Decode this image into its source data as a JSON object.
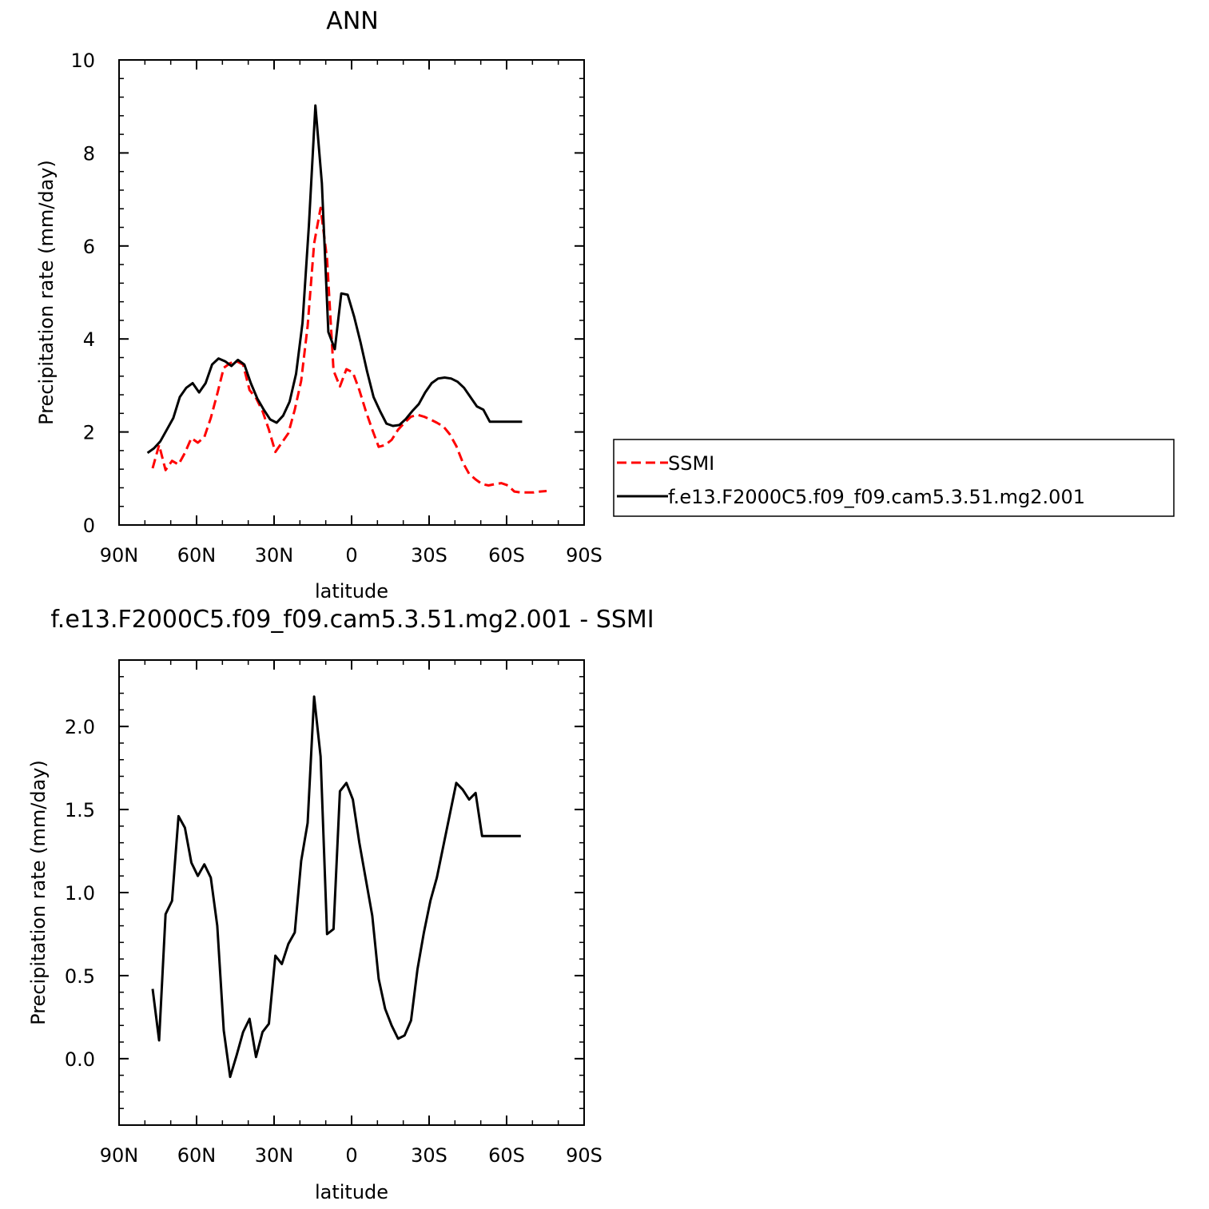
{
  "chart_data": [
    {
      "type": "line",
      "title": "ANN",
      "xlabel": "latitude",
      "ylabel": "Precipitation rate (mm/day)",
      "xlim": [
        90,
        -90
      ],
      "ylim": [
        0,
        10
      ],
      "x_ticks": [
        90,
        60,
        30,
        0,
        -30,
        -60,
        -90
      ],
      "x_tick_labels": [
        "90N",
        "60N",
        "30N",
        "0",
        "30S",
        "60S",
        "90S"
      ],
      "y_ticks": [
        0,
        2,
        4,
        6,
        8,
        10
      ],
      "y_tick_labels": [
        "0",
        "2",
        "4",
        "6",
        "8",
        "10"
      ],
      "grid": false,
      "legend": {
        "placement": "right",
        "entries": [
          "SSMI",
          "f.e13.F2000C5.f09_f09.cam5.3.51.mg2.001"
        ]
      },
      "series": [
        {
          "name": "SSMI",
          "color": "#ff0000",
          "dash": "dashed",
          "x": [
            77,
            74.5,
            72,
            69.5,
            67,
            64.5,
            62,
            59.5,
            57,
            54.5,
            52,
            49.5,
            47,
            44.5,
            42,
            39.5,
            37,
            34.5,
            32,
            29.5,
            27,
            24.5,
            22,
            19.5,
            17,
            14.5,
            12,
            9.5,
            7,
            4.5,
            2,
            -0.5,
            -3,
            -5.5,
            -8,
            -10.5,
            -13,
            -15.5,
            -18,
            -20.5,
            -23,
            -25.5,
            -28,
            -30.5,
            -33,
            -35.5,
            -38,
            -40.5,
            -43,
            -45.5,
            -48,
            -50.5,
            -53,
            -55.5,
            -58,
            -60.5,
            -63,
            -65.5,
            -68,
            -70.5,
            -73,
            -75.5
          ],
          "values": [
            1.22,
            1.72,
            1.18,
            1.38,
            1.3,
            1.55,
            1.87,
            1.77,
            1.89,
            2.3,
            2.82,
            3.38,
            3.48,
            3.52,
            3.45,
            2.9,
            2.73,
            2.45,
            2.05,
            1.57,
            1.77,
            1.97,
            2.48,
            3.1,
            4.28,
            6.05,
            6.82,
            5.72,
            3.32,
            2.98,
            3.35,
            3.28,
            2.9,
            2.45,
            2.05,
            1.68,
            1.72,
            1.83,
            2.05,
            2.2,
            2.33,
            2.37,
            2.33,
            2.27,
            2.2,
            2.12,
            1.95,
            1.7,
            1.35,
            1.1,
            0.98,
            0.88,
            0.85,
            0.88,
            0.9,
            0.85,
            0.72,
            0.7,
            0.7,
            0.7,
            0.72,
            0.73
          ]
        },
        {
          "name": "f.e13.F2000C5.f09_f09.cam5.3.51.mg2.001",
          "color": "#000000",
          "dash": "solid",
          "x": [
            79,
            76.5,
            74,
            71.5,
            69,
            66.5,
            64,
            61.5,
            59,
            56.5,
            54,
            51.5,
            49,
            46.5,
            44,
            41.5,
            39,
            36.5,
            34,
            31.5,
            29,
            26.5,
            24,
            21.5,
            19,
            16.5,
            14,
            11.5,
            9,
            6.5,
            4,
            1.5,
            -1,
            -3.5,
            -6,
            -8.5,
            -11,
            -13.5,
            -16,
            -18.5,
            -21,
            -23.5,
            -26,
            -28.5,
            -31,
            -33.5,
            -36,
            -38.5,
            -41,
            -43.5,
            -46,
            -48.5,
            -51,
            -53.5,
            -56,
            -58.5,
            -61,
            -63.5,
            -66
          ],
          "values": [
            1.55,
            1.65,
            1.8,
            2.05,
            2.3,
            2.75,
            2.95,
            3.05,
            2.85,
            3.05,
            3.45,
            3.58,
            3.52,
            3.42,
            3.55,
            3.45,
            3.05,
            2.72,
            2.48,
            2.27,
            2.2,
            2.35,
            2.65,
            3.25,
            4.35,
            6.45,
            9.02,
            7.35,
            4.15,
            3.78,
            4.98,
            4.95,
            4.48,
            3.92,
            3.3,
            2.75,
            2.45,
            2.18,
            2.13,
            2.15,
            2.28,
            2.45,
            2.6,
            2.85,
            3.05,
            3.15,
            3.17,
            3.15,
            3.08,
            2.95,
            2.75,
            2.55,
            2.48,
            2.22,
            2.22,
            2.22,
            2.22,
            2.22,
            2.22
          ]
        }
      ]
    },
    {
      "type": "line",
      "title": "f.e13.F2000C5.f09_f09.cam5.3.51.mg2.001  -  SSMI",
      "xlabel": "latitude",
      "ylabel": "Precipitation rate (mm/day)",
      "xlim": [
        90,
        -90
      ],
      "ylim": [
        -0.4,
        2.4
      ],
      "x_ticks": [
        90,
        60,
        30,
        0,
        -30,
        -60,
        -90
      ],
      "x_tick_labels": [
        "90N",
        "60N",
        "30N",
        "0",
        "30S",
        "60S",
        "90S"
      ],
      "y_ticks": [
        0.0,
        0.5,
        1.0,
        1.5,
        2.0
      ],
      "y_tick_labels": [
        "0.0",
        "0.5",
        "1.0",
        "1.5",
        "2.0"
      ],
      "grid": false,
      "series": [
        {
          "color": "#000000",
          "dash": "solid",
          "x": [
            77,
            74.5,
            72,
            69.5,
            67,
            64.5,
            62,
            59.5,
            57,
            54.5,
            52,
            49.5,
            47,
            44.5,
            42,
            39.5,
            37,
            34.5,
            32,
            29.5,
            27,
            24.5,
            22,
            19.5,
            17,
            14.5,
            12,
            9.5,
            7,
            4.5,
            2,
            -0.5,
            -3,
            -5.5,
            -8,
            -10.5,
            -13,
            -15.5,
            -18,
            -20.5,
            -23,
            -25.5,
            -28,
            -30.5,
            -33,
            -35.5,
            -38,
            -40.5,
            -43,
            -45.5,
            -48,
            -50.5,
            -53,
            -55.5,
            -58,
            -60.5,
            -63,
            -65.5
          ],
          "values": [
            0.42,
            0.11,
            0.87,
            0.95,
            1.46,
            1.39,
            1.18,
            1.1,
            1.17,
            1.09,
            0.8,
            0.17,
            -0.11,
            0.02,
            0.16,
            0.24,
            0.01,
            0.16,
            0.21,
            0.62,
            0.57,
            0.69,
            0.76,
            1.19,
            1.42,
            2.18,
            1.82,
            0.75,
            0.78,
            1.61,
            1.66,
            1.56,
            1.3,
            1.08,
            0.86,
            0.48,
            0.3,
            0.2,
            0.12,
            0.14,
            0.23,
            0.54,
            0.76,
            0.95,
            1.09,
            1.28,
            1.47,
            1.66,
            1.62,
            1.56,
            1.6,
            1.34,
            1.34,
            1.34,
            1.34,
            1.34,
            1.34,
            1.34
          ]
        }
      ]
    }
  ]
}
